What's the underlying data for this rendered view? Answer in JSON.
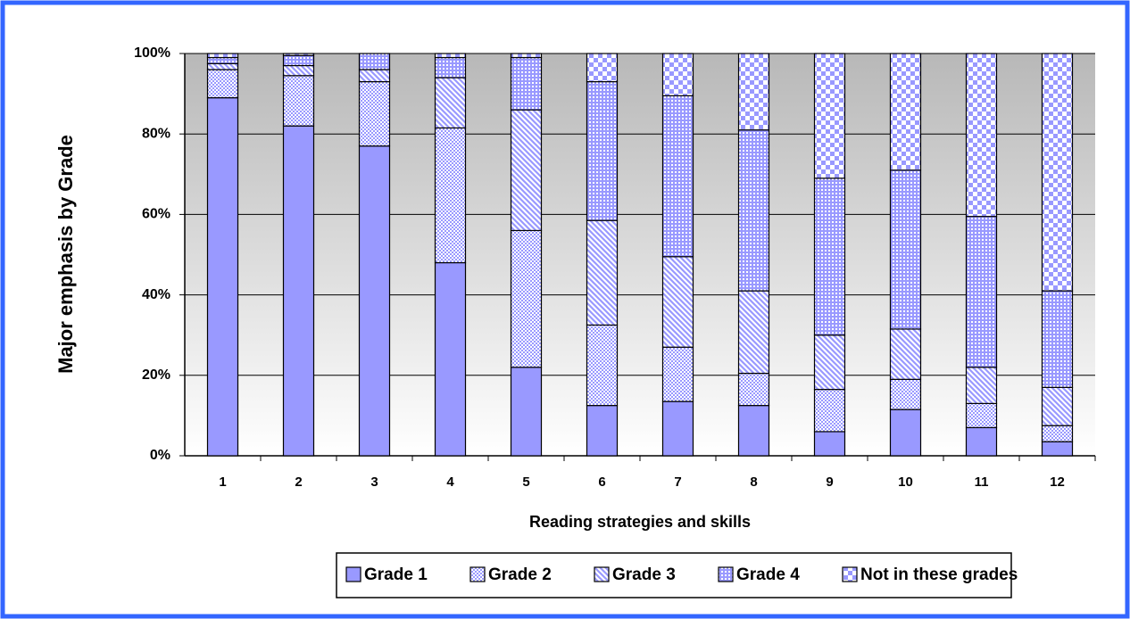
{
  "chart_data": {
    "type": "stacked_bar",
    "x_label": "Reading strategies and skills",
    "y_label": "Major emphasis by Grade",
    "categories": [
      "1",
      "2",
      "3",
      "4",
      "5",
      "6",
      "7",
      "8",
      "9",
      "10",
      "11",
      "12"
    ],
    "series": [
      {
        "name": "Grade 1",
        "color": "#9999ff",
        "pattern": "solid",
        "values": [
          89,
          82,
          77,
          48,
          22,
          12.5,
          13.5,
          12.5,
          6,
          11.5,
          7,
          3.5
        ]
      },
      {
        "name": "Grade 2",
        "color": "#9999ff",
        "pattern": "fine-dots",
        "values": [
          7,
          12.5,
          16,
          33.5,
          34,
          20,
          13.5,
          8,
          10.5,
          7.5,
          6,
          4
        ]
      },
      {
        "name": "Grade 3",
        "color": "#9999ff",
        "pattern": "diagonal",
        "values": [
          1.5,
          2.5,
          3,
          12.5,
          30,
          26,
          22.5,
          20.5,
          13.5,
          12.5,
          9,
          9.5
        ]
      },
      {
        "name": "Grade 4",
        "color": "#9999ff",
        "pattern": "grid",
        "values": [
          1.5,
          2.5,
          4,
          5,
          13,
          34.5,
          40,
          40,
          39,
          39.5,
          37.5,
          24
        ]
      },
      {
        "name": "Not in these grades",
        "color": "#9999ff",
        "pattern": "checker",
        "values": [
          1,
          0.5,
          0,
          1,
          1,
          7,
          10.5,
          19,
          31,
          29,
          40.5,
          59
        ]
      }
    ],
    "ylim": [
      0,
      100
    ],
    "yticks": [
      {
        "value": 0,
        "label": "0%"
      },
      {
        "value": 20,
        "label": "20%"
      },
      {
        "value": 40,
        "label": "40%"
      },
      {
        "value": 60,
        "label": "60%"
      },
      {
        "value": 80,
        "label": "80%"
      },
      {
        "value": 100,
        "label": "100%"
      }
    ],
    "grid": true,
    "legend": "bottom"
  }
}
